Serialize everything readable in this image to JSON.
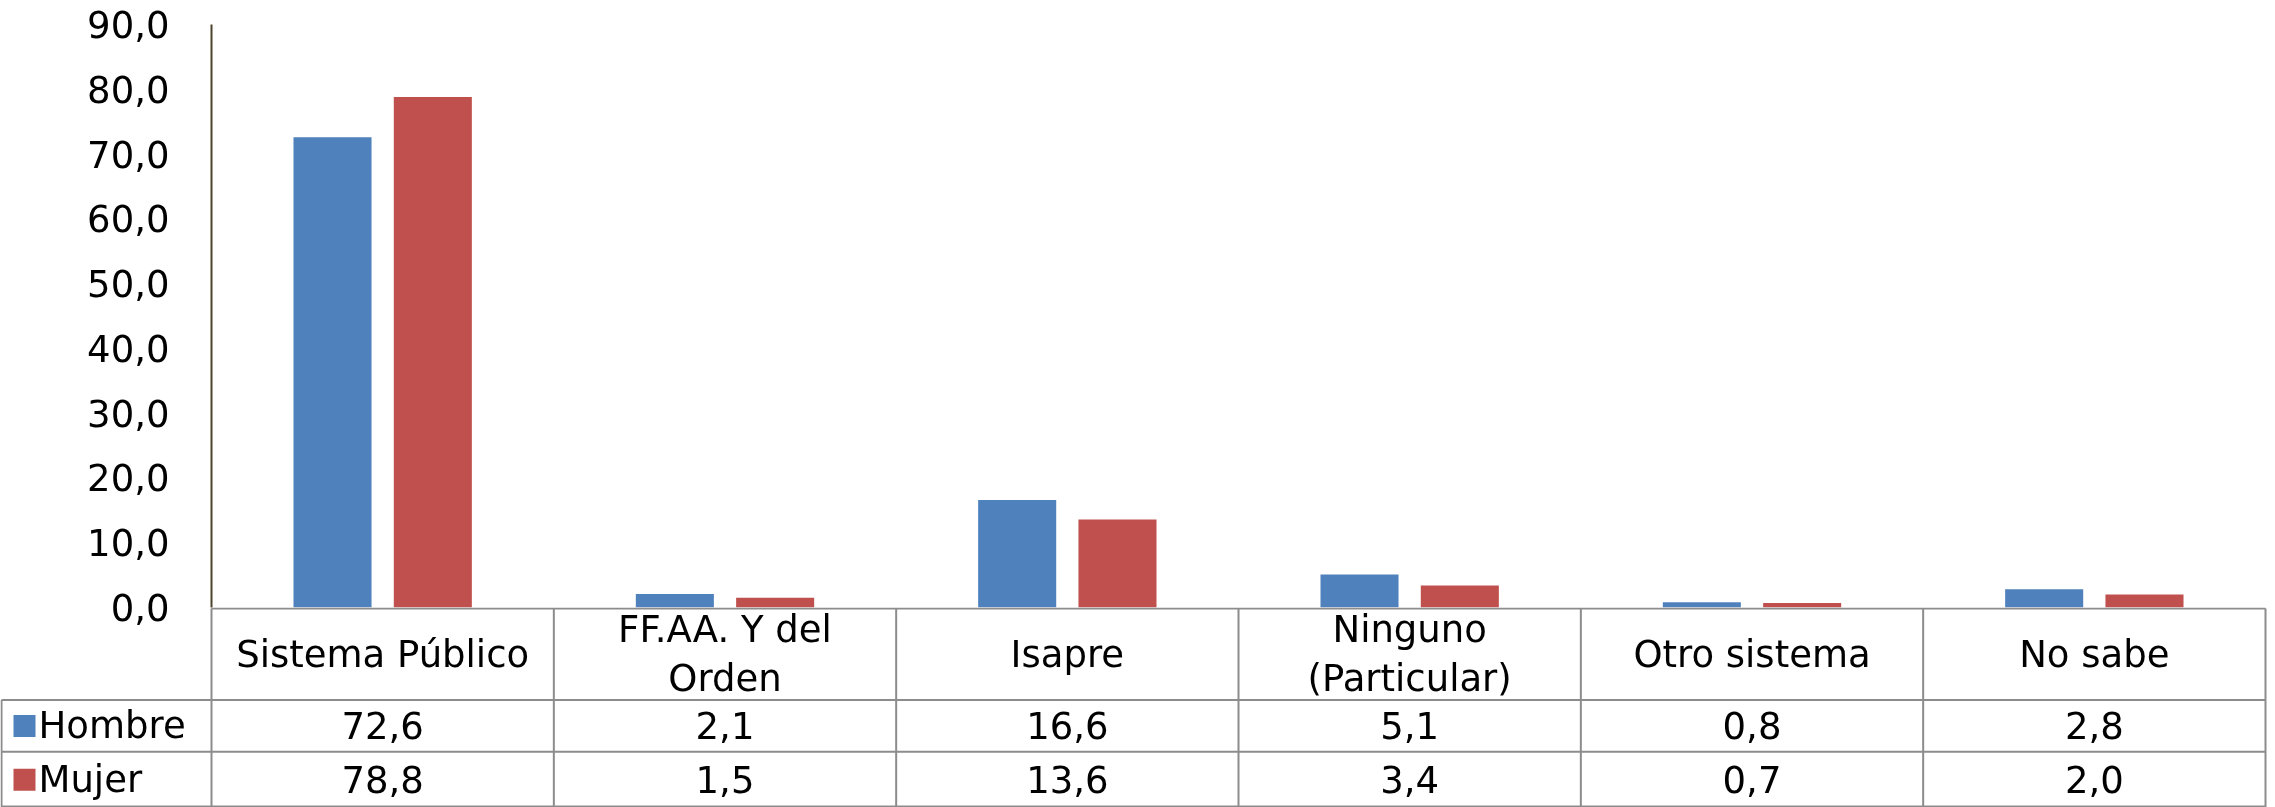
{
  "chart_data": {
    "type": "bar",
    "categories": [
      "Sistema Público",
      "FF.AA. Y del Orden",
      "Isapre",
      "Ninguno (Particular)",
      "Otro sistema",
      "No sabe"
    ],
    "series": [
      {
        "name": "Hombre",
        "color": "#4f81bd",
        "values": [
          72.6,
          2.1,
          16.6,
          5.1,
          0.8,
          2.8
        ],
        "value_labels": [
          "72,6",
          "2,1",
          "16,6",
          "5,1",
          "0,8",
          "2,8"
        ]
      },
      {
        "name": "Mujer",
        "color": "#c0504d",
        "values": [
          78.8,
          1.5,
          13.6,
          3.4,
          0.7,
          2.0
        ],
        "value_labels": [
          "78,8",
          "1,5",
          "13,6",
          "3,4",
          "0,7",
          "2,0"
        ]
      }
    ],
    "ylim": [
      0,
      90
    ],
    "yticks": [
      {
        "value": 0,
        "label": "0,0"
      },
      {
        "value": 10,
        "label": "10,0"
      },
      {
        "value": 20,
        "label": "20,0"
      },
      {
        "value": 30,
        "label": "30,0"
      },
      {
        "value": 40,
        "label": "40,0"
      },
      {
        "value": 50,
        "label": "50,0"
      },
      {
        "value": 60,
        "label": "60,0"
      },
      {
        "value": 70,
        "label": "70,0"
      },
      {
        "value": 80,
        "label": "80,0"
      },
      {
        "value": 90,
        "label": "90,0"
      }
    ],
    "legend": "bottom left"
  }
}
